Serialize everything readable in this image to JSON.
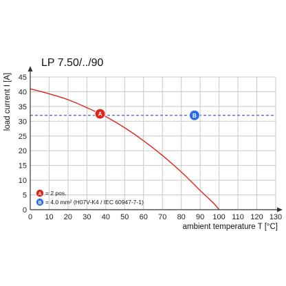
{
  "chart_data": {
    "type": "line",
    "title": "LP 7.50/../90",
    "xlabel": "ambient temperature T [°C]",
    "ylabel": "load current I [A]",
    "xlim": [
      0,
      130
    ],
    "ylim": [
      0,
      45
    ],
    "x_ticks": [
      0,
      10,
      20,
      30,
      40,
      50,
      60,
      70,
      80,
      90,
      100,
      110,
      120,
      130
    ],
    "y_ticks": [
      0,
      5,
      10,
      15,
      20,
      25,
      30,
      35,
      40,
      45
    ],
    "grid": true,
    "series": [
      {
        "color": "#e2231a",
        "style": "solid",
        "x": [
          0,
          10,
          20,
          30,
          37,
          40,
          50,
          60,
          70,
          80,
          85,
          90,
          95,
          98,
          100
        ],
        "y": [
          41.0,
          39.3,
          37.3,
          34.6,
          32.5,
          31.6,
          27.8,
          23.4,
          18.4,
          12.8,
          9.7,
          6.5,
          3.5,
          1.6,
          0.0
        ]
      },
      {
        "color": "#3b5fd6",
        "style": "dashed",
        "x": [
          0,
          130
        ],
        "y": [
          32,
          32
        ]
      }
    ],
    "markers": [
      {
        "label": "A",
        "x": 37,
        "y": 32.5,
        "color": "#e2231a"
      },
      {
        "label": "B",
        "x": 87,
        "y": 32,
        "color": "#2b6bf0"
      }
    ],
    "legend": [
      {
        "marker": "A",
        "color": "#e2231a",
        "text": "= 2 pos."
      },
      {
        "marker": "B",
        "color": "#2b6bf0",
        "text": "= 4.0 mm² (H07V-K4 / IEC 60947-7-1)"
      }
    ],
    "legend_position": "bottom-left"
  }
}
